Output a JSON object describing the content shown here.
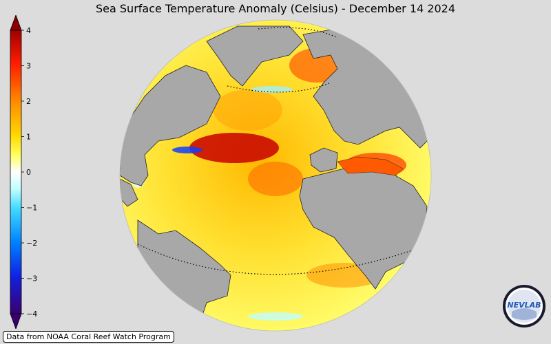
{
  "title": "Sea Surface Temperature Anomaly (Celsius) - December 14 2024",
  "credit": "Data from NOAA Coral Reef Watch Program",
  "logo_text": "NEVLAB",
  "colorbar": {
    "ticks": [
      "4",
      "3",
      "2",
      "1",
      "0",
      "−1",
      "−2",
      "−3",
      "−4"
    ],
    "range": [
      -4,
      4
    ],
    "colors": [
      "#3a006e",
      "#0a3cf0",
      "#00a8ff",
      "#7ff0ff",
      "#ffffff",
      "#ffff40",
      "#ffb000",
      "#ff3a00",
      "#a00000"
    ]
  },
  "map": {
    "projection": "orthographic",
    "center": "North Atlantic",
    "land_color": "#a8a8a8",
    "background_color": "#dcdcdc"
  }
}
